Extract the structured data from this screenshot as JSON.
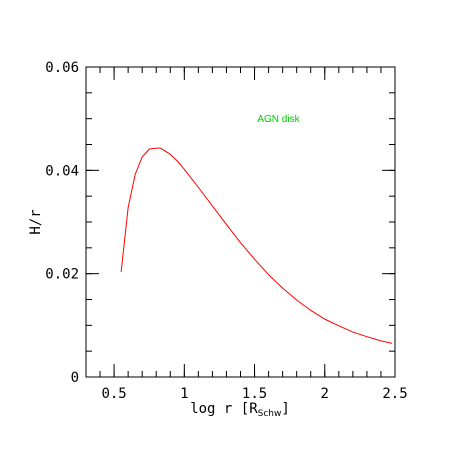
{
  "chart_data": {
    "type": "line",
    "title": "",
    "xlabel": {
      "prefix": "log r [R",
      "subscript": "Schw",
      "suffix": "]"
    },
    "ylabel": "H/r",
    "xlim": [
      0.3,
      2.5
    ],
    "ylim": [
      0,
      0.06
    ],
    "x_ticks": [
      "0.5",
      "1",
      "1.5",
      "2",
      "2.5"
    ],
    "y_ticks": [
      "0",
      "0.02",
      "0.04",
      "0.06"
    ],
    "annotation": {
      "text": "AGN disk",
      "color": "#00cc00",
      "x": 1.52,
      "y": 0.0494
    },
    "series": [
      {
        "color": "#ff0000",
        "x": [
          0.55,
          0.6,
          0.65,
          0.7,
          0.75,
          0.8,
          0.83,
          0.86,
          0.9,
          0.95,
          1.0,
          1.1,
          1.2,
          1.3,
          1.4,
          1.5,
          1.6,
          1.7,
          1.8,
          1.9,
          2.0,
          2.1,
          2.2,
          2.3,
          2.4,
          2.48
        ],
        "y": [
          0.0203,
          0.0328,
          0.0392,
          0.0426,
          0.0441,
          0.0443,
          0.0443,
          0.0438,
          0.0431,
          0.0418,
          0.0402,
          0.0367,
          0.0331,
          0.0295,
          0.026,
          0.0228,
          0.0198,
          0.0172,
          0.0149,
          0.0129,
          0.0112,
          0.0099,
          0.0087,
          0.0078,
          0.007,
          0.0065
        ]
      }
    ]
  }
}
